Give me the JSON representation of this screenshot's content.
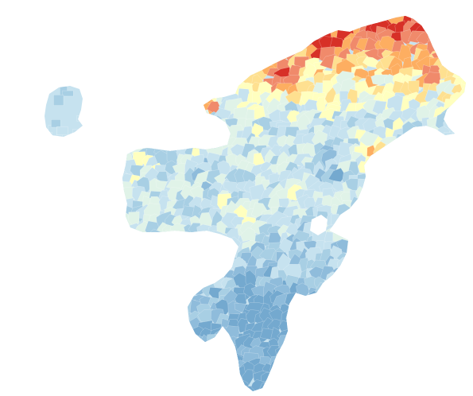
{
  "map": {
    "type": "choropleth",
    "palette": {
      "darkest_red": "#d73027",
      "red": "#f08a6b",
      "orange": "#fdae61",
      "light_orange": "#fee090",
      "cream": "#ffffbf",
      "pale_mint": "#e0f3e8",
      "light_blue": "#c6e2ef",
      "blue": "#a8cfe4",
      "mid_blue": "#8fbcdb",
      "dark_blue": "#74a9cf"
    },
    "legend": null,
    "labels": []
  }
}
